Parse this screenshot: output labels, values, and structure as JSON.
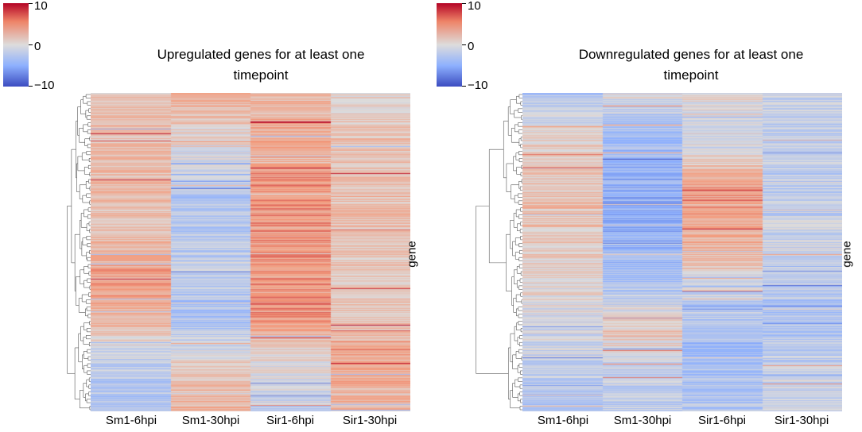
{
  "chart_data": [
    {
      "type": "heatmap",
      "title": "Upregulated genes for at least one timepoint",
      "title_lines": [
        "Upregulated genes for at least one",
        "timepoint"
      ],
      "columns": [
        "Sm1-6hpi",
        "Sm1-30hpi",
        "Sir1-6hpi",
        "Sir1-30hpi"
      ],
      "ylabel": "gene",
      "colorbar": {
        "min": -10,
        "max": 10,
        "ticks": [
          "10",
          "0",
          "−10"
        ]
      },
      "dendrogram": "rows",
      "column_profiles": [
        [
          [
            0,
            1.5
          ],
          [
            0.2,
            2.5
          ],
          [
            0.4,
            2.0
          ],
          [
            0.6,
            4.5
          ],
          [
            0.72,
            2.5
          ],
          [
            0.85,
            -2.0
          ],
          [
            1.0,
            -3.0
          ]
        ],
        [
          [
            0,
            3.0
          ],
          [
            0.15,
            0.5
          ],
          [
            0.35,
            -3.0
          ],
          [
            0.55,
            -1.5
          ],
          [
            0.7,
            -3.5
          ],
          [
            0.85,
            1.0
          ],
          [
            1.0,
            3.5
          ]
        ],
        [
          [
            0,
            2.5
          ],
          [
            0.1,
            3.5
          ],
          [
            0.3,
            5.0
          ],
          [
            0.5,
            4.5
          ],
          [
            0.7,
            5.0
          ],
          [
            0.85,
            0.0
          ],
          [
            1.0,
            -1.5
          ]
        ],
        [
          [
            0,
            1.0
          ],
          [
            0.2,
            2.5
          ],
          [
            0.4,
            2.0
          ],
          [
            0.6,
            1.5
          ],
          [
            0.72,
            2.0
          ],
          [
            0.85,
            4.0
          ],
          [
            1.0,
            2.5
          ]
        ]
      ]
    },
    {
      "type": "heatmap",
      "title": "Downregulated genes for at least one timepoint",
      "title_lines": [
        "Downregulated genes for at least one",
        "timepoint"
      ],
      "columns": [
        "Sm1-6hpi",
        "Sm1-30hpi",
        "Sir1-6hpi",
        "Sir1-30hpi"
      ],
      "ylabel": "gene",
      "colorbar": {
        "min": -10,
        "max": 10,
        "ticks": [
          "10",
          "0",
          "−10"
        ]
      },
      "dendrogram": "rows",
      "column_profiles": [
        [
          [
            0,
            -2.5
          ],
          [
            0.15,
            1.0
          ],
          [
            0.4,
            2.0
          ],
          [
            0.6,
            0.5
          ],
          [
            0.8,
            -1.0
          ],
          [
            1.0,
            -3.0
          ]
        ],
        [
          [
            0,
            0.0
          ],
          [
            0.15,
            -4.0
          ],
          [
            0.4,
            -5.0
          ],
          [
            0.6,
            -3.0
          ],
          [
            0.75,
            1.5
          ],
          [
            0.85,
            -1.0
          ],
          [
            1.0,
            -2.0
          ]
        ],
        [
          [
            0,
            0.5
          ],
          [
            0.15,
            -0.5
          ],
          [
            0.3,
            4.5
          ],
          [
            0.5,
            3.0
          ],
          [
            0.65,
            -2.0
          ],
          [
            0.8,
            -3.5
          ],
          [
            1.0,
            -2.5
          ]
        ],
        [
          [
            0,
            -1.5
          ],
          [
            0.3,
            -2.0
          ],
          [
            0.5,
            -1.0
          ],
          [
            0.7,
            -3.0
          ],
          [
            0.85,
            -1.5
          ],
          [
            1.0,
            -1.0
          ]
        ]
      ]
    }
  ]
}
